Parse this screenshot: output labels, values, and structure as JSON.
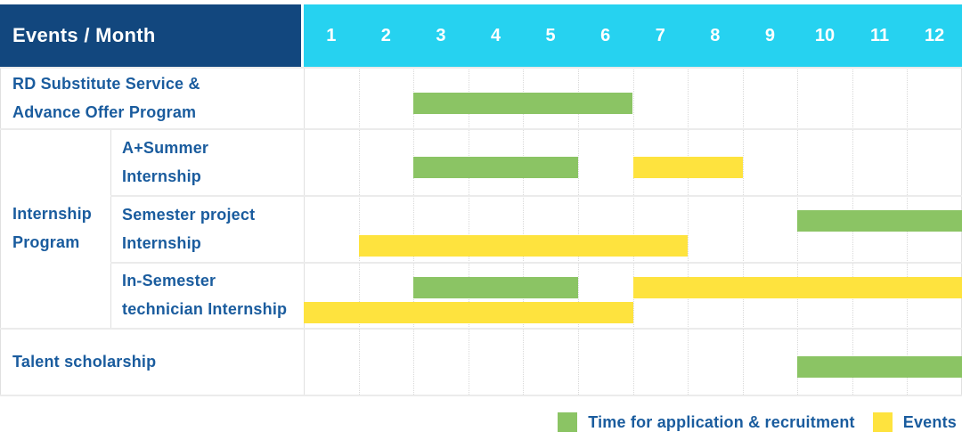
{
  "page": {
    "background": "#FFFFFF"
  },
  "colors": {
    "header_navy": "#12477E",
    "header_cyan": "#26D2F0",
    "header_text": "#FFFFFF",
    "bar_green": "#8BC464",
    "bar_yellow": "#FEE33E",
    "label_blue": "#1A5C9E",
    "grid_dotted": "#D9D9D9",
    "grid_solid": "#E0E0E0",
    "row_line": "#EBEBEB"
  },
  "header": {
    "label": "Events / Month",
    "months": [
      "1",
      "2",
      "3",
      "4",
      "5",
      "6",
      "7",
      "8",
      "9",
      "10",
      "11",
      "12"
    ]
  },
  "chart_data": {
    "type": "gantt",
    "unit": "month",
    "x_range": [
      1,
      12
    ],
    "title": "Events / Month",
    "legend": [
      {
        "key": "recruitment",
        "label": "Time for application & recruitment",
        "color": "#8BC464"
      },
      {
        "key": "event",
        "label": "Events",
        "color": "#FEE33E"
      }
    ],
    "group": {
      "label": "Internship Program",
      "label_lines": [
        "Internship",
        "Program"
      ],
      "member_rows": [
        "A+Summer Internship",
        "Semester project Internship",
        "In-Semester technician Internship"
      ]
    },
    "rows": [
      {
        "label": "RD Substitute Service & Advance Offer Program",
        "label_lines": [
          "RD Substitute Service &",
          "Advance Offer Program"
        ],
        "group": "",
        "bars": [
          {
            "kind": "recruitment",
            "start_month": 3,
            "end_month": 6,
            "line": "middle"
          }
        ]
      },
      {
        "label": "A+Summer Internship",
        "label_lines": [
          "A+Summer",
          "Internship"
        ],
        "group": "Internship Program",
        "bars": [
          {
            "kind": "recruitment",
            "start_month": 3,
            "end_month": 5,
            "line": "middle"
          },
          {
            "kind": "event",
            "start_month": 7,
            "end_month": 8,
            "line": "middle"
          }
        ]
      },
      {
        "label": "Semester project Internship",
        "label_lines": [
          "Semester project",
          "Internship"
        ],
        "group": "Internship Program",
        "bars": [
          {
            "kind": "recruitment",
            "start_month": 10,
            "end_month": 12,
            "line": "top"
          },
          {
            "kind": "event",
            "start_month": 2,
            "end_month": 7,
            "line": "bottom"
          }
        ]
      },
      {
        "label": "In-Semester technician Internship",
        "label_lines": [
          "In-Semester",
          "technician Internship"
        ],
        "group": "Internship Program",
        "bars": [
          {
            "kind": "recruitment",
            "start_month": 3,
            "end_month": 5,
            "line": "top"
          },
          {
            "kind": "event",
            "start_month": 7,
            "end_month": 12,
            "line": "top"
          },
          {
            "kind": "event",
            "start_month": 1,
            "end_month": 6,
            "line": "bottom"
          }
        ]
      },
      {
        "label": "Talent scholarship",
        "label_lines": [
          "Talent scholarship"
        ],
        "group": "",
        "bars": [
          {
            "kind": "recruitment",
            "start_month": 10,
            "end_month": 12,
            "line": "middle"
          }
        ]
      }
    ]
  }
}
